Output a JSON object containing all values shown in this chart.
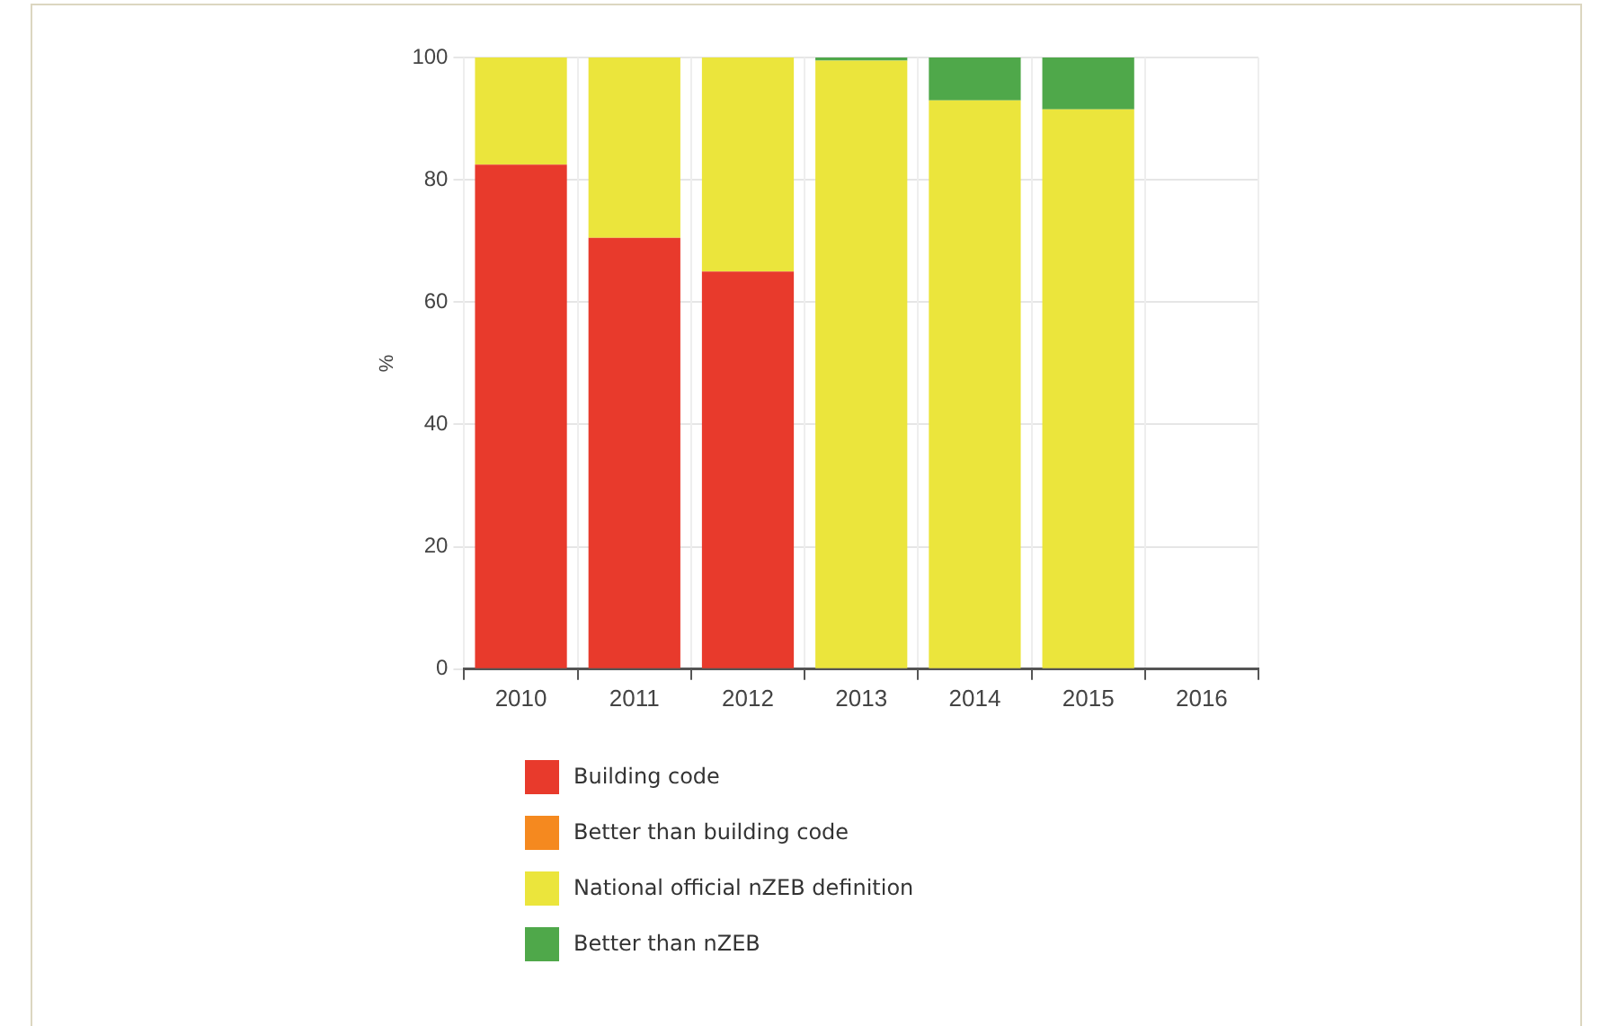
{
  "chart_data": {
    "type": "bar",
    "stacked": true,
    "ylabel": "%",
    "categories": [
      "2010",
      "2011",
      "2012",
      "2013",
      "2014",
      "2015",
      "2016"
    ],
    "series": [
      {
        "name": "Building code",
        "color": "#e83a2c",
        "values": [
          82.5,
          70.5,
          65,
          0,
          0,
          0,
          null
        ]
      },
      {
        "name": "Better than building code",
        "color": "#f5891f",
        "values": [
          0,
          0,
          0,
          0,
          0,
          0,
          null
        ]
      },
      {
        "name": "National official nZEB definition",
        "color": "#ebe53c",
        "values": [
          17.5,
          29.5,
          35,
          99.5,
          93,
          91.5,
          null
        ]
      },
      {
        "name": "Better than nZEB",
        "color": "#4fa84a",
        "values": [
          0,
          0,
          0,
          0.5,
          7,
          8.5,
          null
        ]
      }
    ],
    "ylim": [
      0,
      100
    ],
    "yticks": [
      0,
      20,
      40,
      60,
      80,
      100
    ],
    "grid": true,
    "legend": "bottom"
  }
}
